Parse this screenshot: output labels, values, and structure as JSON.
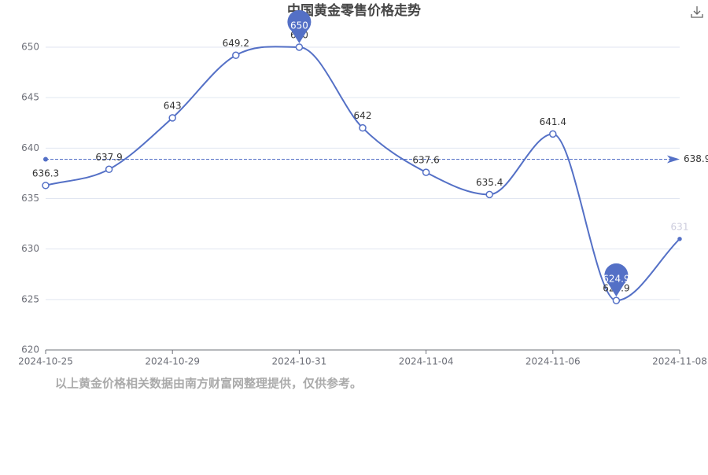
{
  "chart_data": {
    "type": "line",
    "title": "中国黄金零售价格走势",
    "categories": [
      "2024-10-25",
      null,
      "2024-10-29",
      null,
      "2024-10-31",
      null,
      "2024-11-04",
      null,
      "2024-11-06",
      null,
      "2024-11-08"
    ],
    "series": [
      {
        "color": "#5470c6",
        "values": [
          636.3,
          637.9,
          643,
          649.2,
          650,
          642,
          637.6,
          635.4,
          641.4,
          624.9,
          631
        ]
      }
    ],
    "ylim": [
      620,
      650
    ],
    "yticks": [
      620,
      625,
      630,
      635,
      640,
      645,
      650
    ],
    "grid": true,
    "average_line": 638.9,
    "max_point_index": 4,
    "min_point_index": 9,
    "note": "以上黄金价格相关数据由南方财富网整理提供，仅供参考。"
  }
}
